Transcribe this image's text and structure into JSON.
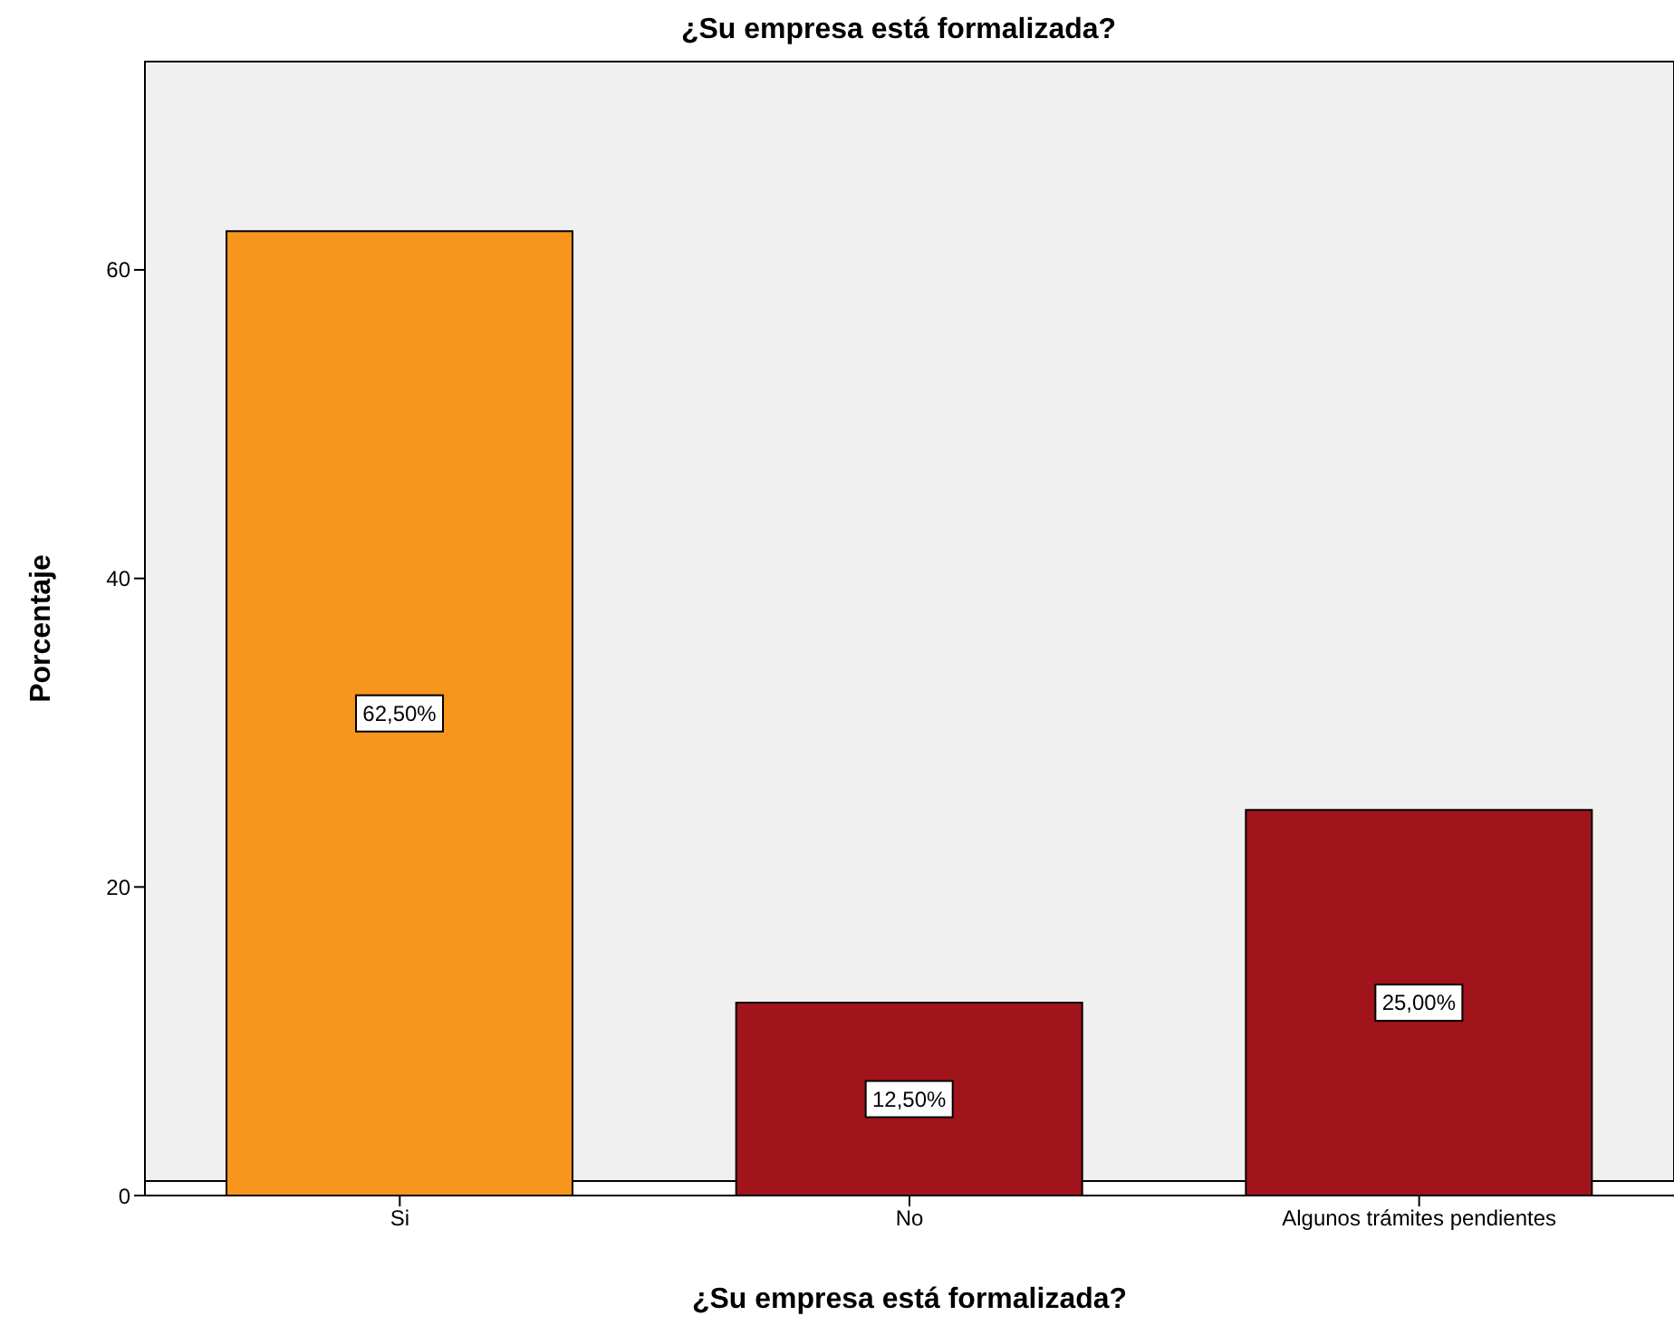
{
  "chart_data": {
    "type": "bar",
    "title": "¿Su empresa está formalizada?",
    "xlabel": "¿Su empresa está formalizada?",
    "ylabel": "Porcentaje",
    "categories": [
      "Si",
      "No",
      "Algunos trámites pendientes"
    ],
    "values": [
      62.5,
      12.5,
      25
    ],
    "colors": [
      "#f7951d",
      "#a1141b",
      "#a1141b"
    ],
    "value_labels": [
      "62,50%",
      "12,50%",
      "25,00%"
    ],
    "ylim": [
      0,
      73.5
    ],
    "yticks": [
      0,
      20,
      40,
      60
    ],
    "grid": false,
    "legend": false
  }
}
